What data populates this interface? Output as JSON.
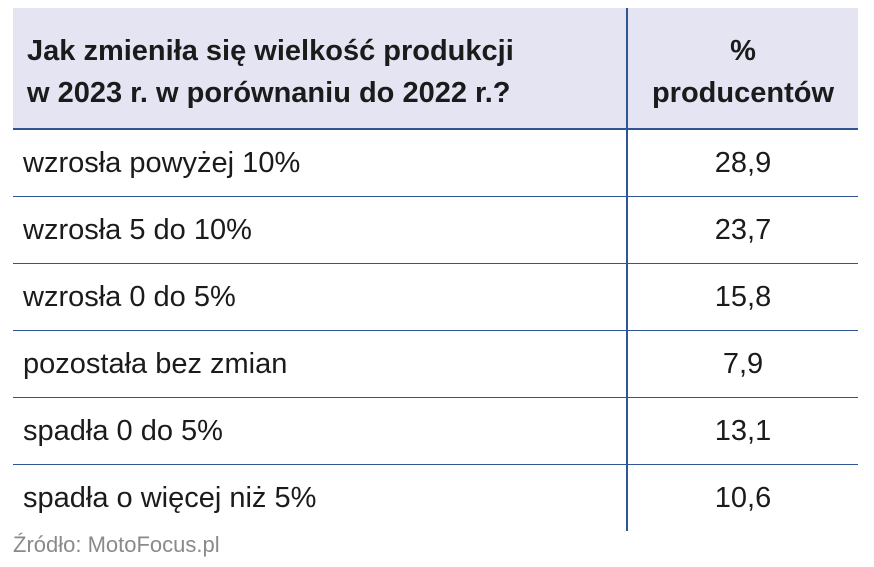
{
  "chart_data": {
    "type": "table",
    "columns": [
      "Jak zmieniła się wielkość produkcji w 2023 r. w porównaniu do 2022 r.?",
      "% producentów"
    ],
    "header": {
      "question_line1": "Jak zmieniła się wielkość produkcji",
      "question_line2": "w 2023 r. w porównaniu do 2022 r.?",
      "percent_line1": "%",
      "percent_line2": "producentów"
    },
    "categories": [
      "wzrosła powyżej 10%",
      "wzrosła 5 do 10%",
      "wzrosła 0 do 5%",
      "pozostała bez zmian",
      "spadła 0 do 5%",
      "spadła o więcej niż 5%"
    ],
    "values_display": [
      "28,9",
      "23,7",
      "15,8",
      "7,9",
      "13,1",
      "10,6"
    ],
    "values": [
      28.9,
      23.7,
      15.8,
      7.9,
      13.1,
      10.6
    ]
  },
  "source": "Źródło: MotoFocus.pl",
  "colors": {
    "header_bg": "#e4e4f3",
    "rule": "#2f5592",
    "text": "#1b1b1b",
    "source_text": "#8a8a8a"
  }
}
